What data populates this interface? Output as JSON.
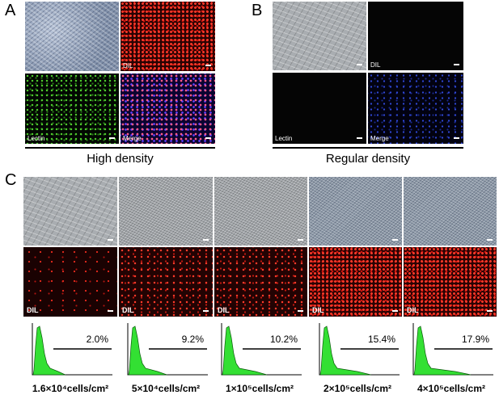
{
  "panel_a": {
    "letter": "A",
    "tile_labels": [
      "DIL",
      "Lectin",
      "Merge"
    ],
    "caption": "High density"
  },
  "panel_b": {
    "letter": "B",
    "tile_labels": [
      "DIL",
      "Lectin",
      "Merge"
    ],
    "caption": "Regular density"
  },
  "panel_c": {
    "letter": "C",
    "fluor_label": "DIL",
    "histograms": [
      {
        "percent": "2.0%",
        "density": "1.6×10⁴cells/cm²"
      },
      {
        "percent": "9.2%",
        "density": "5×10⁴cells/cm²"
      },
      {
        "percent": "10.2%",
        "density": "1×10⁵cells/cm²"
      },
      {
        "percent": "15.4%",
        "density": "2×10⁵cells/cm²"
      },
      {
        "percent": "17.9%",
        "density": "4×10⁵cells/cm²"
      }
    ]
  }
}
